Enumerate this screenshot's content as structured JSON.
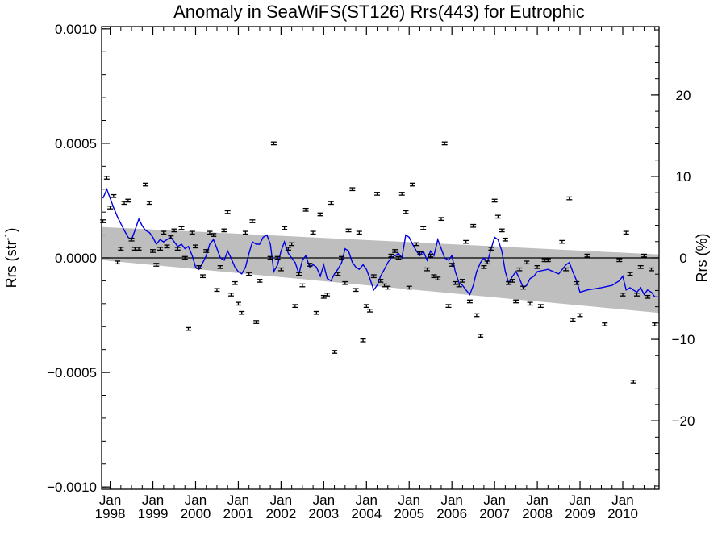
{
  "chart_data": {
    "type": "scatter",
    "title": "Anomaly in SeaWiFS(ST126) Rrs(443) for Eutrophic",
    "ylabel_left_main": "Rrs (str",
    "ylabel_left_sup": "-1",
    "ylabel_left_close": ")",
    "ylabel_right": "Rrs (%)",
    "xlim": [
      1997.8,
      2010.85
    ],
    "ylim_left": [
      -0.00101,
      0.00101
    ],
    "ylim_right": [
      -28.4,
      28.4
    ],
    "x_tick_month": "Jan",
    "x_ticks": [
      {
        "value": 1998,
        "label": "1998"
      },
      {
        "value": 1999,
        "label": "1999"
      },
      {
        "value": 2000,
        "label": "2000"
      },
      {
        "value": 2001,
        "label": "2001"
      },
      {
        "value": 2002,
        "label": "2002"
      },
      {
        "value": 2003,
        "label": "2003"
      },
      {
        "value": 2004,
        "label": "2004"
      },
      {
        "value": 2005,
        "label": "2005"
      },
      {
        "value": 2006,
        "label": "2006"
      },
      {
        "value": 2007,
        "label": "2007"
      },
      {
        "value": 2008,
        "label": "2008"
      },
      {
        "value": 2009,
        "label": "2009"
      },
      {
        "value": 2010,
        "label": "2010"
      }
    ],
    "y_ticks_left": [
      {
        "value": 0.001,
        "label": "0.0010"
      },
      {
        "value": 0.0005,
        "label": "0.0005"
      },
      {
        "value": 0.0,
        "label": "0.0000"
      },
      {
        "value": -0.0005,
        "label": "−0.0005"
      },
      {
        "value": -0.001,
        "label": "−0.0010"
      }
    ],
    "y_ticks_right": [
      {
        "value": 20,
        "label": "20"
      },
      {
        "value": 10,
        "label": "10"
      },
      {
        "value": 0,
        "label": "0"
      },
      {
        "value": -10,
        "label": "−10"
      },
      {
        "value": -20,
        "label": "−20"
      }
    ],
    "trend_band": {
      "x": [
        1997.8,
        2010.85
      ],
      "upper": [
        0.000135,
        1.5e-05
      ],
      "lower": [
        -1e-05,
        -0.00024
      ]
    },
    "colors": {
      "smooth_line": "#0000e6",
      "band": "#bebebe",
      "points": "#000000"
    },
    "error_half_width": 6e-06,
    "points": [
      {
        "x": 1997.83,
        "y": 0.00016
      },
      {
        "x": 1997.92,
        "y": 0.00035
      },
      {
        "x": 1998.0,
        "y": 0.00022
      },
      {
        "x": 1998.08,
        "y": 0.00027
      },
      {
        "x": 1998.17,
        "y": -2e-05
      },
      {
        "x": 1998.25,
        "y": 4e-05
      },
      {
        "x": 1998.33,
        "y": 0.00024
      },
      {
        "x": 1998.42,
        "y": 0.00025
      },
      {
        "x": 1998.5,
        "y": 8e-05
      },
      {
        "x": 1998.58,
        "y": 4e-05
      },
      {
        "x": 1998.67,
        "y": 4e-05
      },
      {
        "x": 1998.83,
        "y": 0.00032
      },
      {
        "x": 1998.92,
        "y": 0.00024
      },
      {
        "x": 1999.0,
        "y": 3e-05
      },
      {
        "x": 1999.08,
        "y": -3e-05
      },
      {
        "x": 1999.17,
        "y": 4e-05
      },
      {
        "x": 1999.25,
        "y": 0.00011
      },
      {
        "x": 1999.33,
        "y": 5e-05
      },
      {
        "x": 1999.42,
        "y": 9e-05
      },
      {
        "x": 1999.5,
        "y": 0.00012
      },
      {
        "x": 1999.58,
        "y": 4e-05
      },
      {
        "x": 1999.67,
        "y": 0.00013
      },
      {
        "x": 1999.75,
        "y": 0.0
      },
      {
        "x": 1999.83,
        "y": -0.00031
      },
      {
        "x": 1999.92,
        "y": 0.00011
      },
      {
        "x": 2000.0,
        "y": 5e-05
      },
      {
        "x": 2000.08,
        "y": -4e-05
      },
      {
        "x": 2000.17,
        "y": -8e-05
      },
      {
        "x": 2000.25,
        "y": 3e-05
      },
      {
        "x": 2000.33,
        "y": 0.00011
      },
      {
        "x": 2000.42,
        "y": 0.0001
      },
      {
        "x": 2000.5,
        "y": -0.00014
      },
      {
        "x": 2000.58,
        "y": -4e-05
      },
      {
        "x": 2000.67,
        "y": 0.00012
      },
      {
        "x": 2000.75,
        "y": 0.0002
      },
      {
        "x": 2000.83,
        "y": -0.00016
      },
      {
        "x": 2000.92,
        "y": -0.00011
      },
      {
        "x": 2001.0,
        "y": -0.0002
      },
      {
        "x": 2001.08,
        "y": -0.00024
      },
      {
        "x": 2001.17,
        "y": 0.00011
      },
      {
        "x": 2001.25,
        "y": -7e-05
      },
      {
        "x": 2001.33,
        "y": 0.00016
      },
      {
        "x": 2001.42,
        "y": -0.00028
      },
      {
        "x": 2001.5,
        "y": -0.0001
      },
      {
        "x": 2001.75,
        "y": 0.0
      },
      {
        "x": 2001.83,
        "y": 0.0005
      },
      {
        "x": 2001.92,
        "y": 0.0
      },
      {
        "x": 2002.0,
        "y": -5e-05
      },
      {
        "x": 2002.08,
        "y": 0.00013
      },
      {
        "x": 2002.17,
        "y": 4e-05
      },
      {
        "x": 2002.25,
        "y": 6e-05
      },
      {
        "x": 2002.33,
        "y": -0.00021
      },
      {
        "x": 2002.42,
        "y": -7e-05
      },
      {
        "x": 2002.5,
        "y": -0.00012
      },
      {
        "x": 2002.58,
        "y": 0.00021
      },
      {
        "x": 2002.67,
        "y": -3e-05
      },
      {
        "x": 2002.75,
        "y": 0.00011
      },
      {
        "x": 2002.83,
        "y": -0.00024
      },
      {
        "x": 2002.92,
        "y": 0.00019
      },
      {
        "x": 2003.0,
        "y": -0.00017
      },
      {
        "x": 2003.08,
        "y": -0.00016
      },
      {
        "x": 2003.17,
        "y": 0.00024
      },
      {
        "x": 2003.25,
        "y": -0.00041
      },
      {
        "x": 2003.33,
        "y": -7e-05
      },
      {
        "x": 2003.42,
        "y": 0.0
      },
      {
        "x": 2003.5,
        "y": -0.00011
      },
      {
        "x": 2003.58,
        "y": 0.00012
      },
      {
        "x": 2003.67,
        "y": 0.0003
      },
      {
        "x": 2003.75,
        "y": -0.00014
      },
      {
        "x": 2003.83,
        "y": 0.00011
      },
      {
        "x": 2003.92,
        "y": -0.00036
      },
      {
        "x": 2004.0,
        "y": -0.00021
      },
      {
        "x": 2004.08,
        "y": -0.00023
      },
      {
        "x": 2004.17,
        "y": -8e-05
      },
      {
        "x": 2004.25,
        "y": 0.00028
      },
      {
        "x": 2004.33,
        "y": -0.0001
      },
      {
        "x": 2004.42,
        "y": -0.00012
      },
      {
        "x": 2004.5,
        "y": -0.00013
      },
      {
        "x": 2004.58,
        "y": 1e-05
      },
      {
        "x": 2004.67,
        "y": 3e-05
      },
      {
        "x": 2004.75,
        "y": 0.0
      },
      {
        "x": 2004.83,
        "y": 0.00028
      },
      {
        "x": 2004.92,
        "y": 0.0002
      },
      {
        "x": 2005.0,
        "y": -0.00013
      },
      {
        "x": 2005.08,
        "y": 0.00032
      },
      {
        "x": 2005.17,
        "y": 6e-05
      },
      {
        "x": 2005.25,
        "y": 2e-05
      },
      {
        "x": 2005.33,
        "y": 0.00013
      },
      {
        "x": 2005.42,
        "y": -5e-05
      },
      {
        "x": 2005.5,
        "y": 1e-05
      },
      {
        "x": 2005.58,
        "y": -8e-05
      },
      {
        "x": 2005.67,
        "y": -9e-05
      },
      {
        "x": 2005.75,
        "y": 0.00017
      },
      {
        "x": 2005.83,
        "y": 0.0005
      },
      {
        "x": 2005.92,
        "y": -0.00021
      },
      {
        "x": 2006.0,
        "y": -3e-05
      },
      {
        "x": 2006.08,
        "y": -0.00011
      },
      {
        "x": 2006.17,
        "y": -0.00012
      },
      {
        "x": 2006.25,
        "y": -0.0001
      },
      {
        "x": 2006.33,
        "y": 7e-05
      },
      {
        "x": 2006.42,
        "y": -0.00019
      },
      {
        "x": 2006.5,
        "y": 0.00014
      },
      {
        "x": 2006.58,
        "y": -0.00025
      },
      {
        "x": 2006.67,
        "y": -0.00034
      },
      {
        "x": 2006.75,
        "y": -4e-05
      },
      {
        "x": 2006.83,
        "y": -2e-05
      },
      {
        "x": 2006.92,
        "y": 4e-05
      },
      {
        "x": 2007.0,
        "y": 0.00025
      },
      {
        "x": 2007.08,
        "y": 0.00018
      },
      {
        "x": 2007.17,
        "y": 0.00012
      },
      {
        "x": 2007.25,
        "y": 8e-05
      },
      {
        "x": 2007.33,
        "y": -0.00011
      },
      {
        "x": 2007.42,
        "y": -0.0001
      },
      {
        "x": 2007.5,
        "y": -0.00019
      },
      {
        "x": 2007.58,
        "y": -5e-05
      },
      {
        "x": 2007.67,
        "y": -0.00013
      },
      {
        "x": 2007.75,
        "y": -2e-05
      },
      {
        "x": 2007.83,
        "y": -0.0002
      },
      {
        "x": 2008.0,
        "y": -4e-05
      },
      {
        "x": 2008.08,
        "y": -0.00021
      },
      {
        "x": 2008.17,
        "y": -1e-05
      },
      {
        "x": 2008.25,
        "y": -1e-05
      },
      {
        "x": 2008.58,
        "y": 7e-05
      },
      {
        "x": 2008.67,
        "y": -5e-05
      },
      {
        "x": 2008.75,
        "y": 0.00026
      },
      {
        "x": 2008.83,
        "y": -0.00027
      },
      {
        "x": 2008.92,
        "y": -0.00011
      },
      {
        "x": 2009.0,
        "y": -0.00025
      },
      {
        "x": 2009.17,
        "y": 1e-05
      },
      {
        "x": 2009.58,
        "y": -0.00029
      },
      {
        "x": 2009.92,
        "y": -1e-05
      },
      {
        "x": 2010.0,
        "y": -0.00016
      },
      {
        "x": 2010.08,
        "y": 0.00011
      },
      {
        "x": 2010.17,
        "y": -7e-05
      },
      {
        "x": 2010.25,
        "y": -0.00054
      },
      {
        "x": 2010.33,
        "y": -0.00016
      },
      {
        "x": 2010.42,
        "y": -4e-05
      },
      {
        "x": 2010.5,
        "y": 1e-05
      },
      {
        "x": 2010.58,
        "y": -0.00017
      },
      {
        "x": 2010.67,
        "y": -5e-05
      },
      {
        "x": 2010.75,
        "y": -0.00029
      }
    ],
    "smooth_line": {
      "x": [
        1997.83,
        1997.92,
        1998.0,
        1998.08,
        1998.17,
        1998.25,
        1998.33,
        1998.42,
        1998.5,
        1998.58,
        1998.67,
        1998.75,
        1998.83,
        1998.92,
        1999.0,
        1999.08,
        1999.17,
        1999.25,
        1999.33,
        1999.42,
        1999.5,
        1999.58,
        1999.67,
        1999.75,
        1999.83,
        1999.92,
        2000.0,
        2000.08,
        2000.17,
        2000.25,
        2000.33,
        2000.42,
        2000.5,
        2000.58,
        2000.67,
        2000.75,
        2000.83,
        2000.92,
        2001.0,
        2001.08,
        2001.17,
        2001.25,
        2001.33,
        2001.42,
        2001.5,
        2001.58,
        2001.67,
        2001.75,
        2001.83,
        2001.92,
        2002.0,
        2002.08,
        2002.17,
        2002.25,
        2002.33,
        2002.42,
        2002.5,
        2002.58,
        2002.67,
        2002.75,
        2002.83,
        2002.92,
        2003.0,
        2003.08,
        2003.17,
        2003.25,
        2003.33,
        2003.42,
        2003.5,
        2003.58,
        2003.67,
        2003.75,
        2003.83,
        2003.92,
        2004.0,
        2004.08,
        2004.17,
        2004.25,
        2004.33,
        2004.42,
        2004.5,
        2004.58,
        2004.67,
        2004.75,
        2004.83,
        2004.92,
        2005.0,
        2005.08,
        2005.17,
        2005.25,
        2005.33,
        2005.42,
        2005.5,
        2005.58,
        2005.67,
        2005.75,
        2005.83,
        2005.92,
        2006.0,
        2006.08,
        2006.17,
        2006.25,
        2006.33,
        2006.42,
        2006.5,
        2006.58,
        2006.67,
        2006.75,
        2006.83,
        2006.92,
        2007.0,
        2007.08,
        2007.17,
        2007.25,
        2007.33,
        2007.42,
        2007.5,
        2007.58,
        2007.67,
        2007.75,
        2007.83,
        2007.92,
        2008.0,
        2008.25,
        2008.5,
        2008.67,
        2008.75,
        2008.83,
        2008.92,
        2009.0,
        2009.17,
        2009.5,
        2009.75,
        2009.92,
        2010.0,
        2010.08,
        2010.17,
        2010.25,
        2010.33,
        2010.42,
        2010.5,
        2010.58,
        2010.67,
        2010.75,
        2010.83
      ],
      "y": [
        0.00026,
        0.0003,
        0.00026,
        0.00022,
        0.00018,
        0.00015,
        0.00012,
        9e-05,
        8e-05,
        0.00012,
        0.00017,
        0.00014,
        0.00012,
        0.00011,
        9e-05,
        6e-05,
        8e-05,
        7e-05,
        8e-05,
        9e-05,
        7e-05,
        5e-05,
        6e-05,
        4e-05,
        5e-05,
        1e-05,
        -4e-05,
        -5e-05,
        -2e-05,
        1e-05,
        6e-05,
        8e-05,
        4e-05,
        0.0,
        -1e-05,
        3e-05,
        0.0,
        -4e-05,
        -6e-05,
        -7e-05,
        -4e-05,
        2e-05,
        7e-05,
        6e-05,
        6e-05,
        9e-05,
        0.0001,
        6e-05,
        -6e-05,
        -3e-05,
        3e-05,
        7e-05,
        2e-05,
        0.0,
        -2e-05,
        -7e-05,
        -1e-05,
        1e-05,
        -4e-05,
        -3e-05,
        -4e-05,
        -8e-05,
        -3e-05,
        -9e-05,
        -0.0001,
        -7e-05,
        -5e-05,
        -2e-05,
        4e-05,
        3e-05,
        -2e-05,
        -4e-05,
        -5e-05,
        -3e-05,
        -5e-05,
        -9e-05,
        -0.00014,
        -0.00012,
        -8e-05,
        -5e-05,
        -2e-05,
        0.0,
        1e-05,
        2e-05,
        0.0,
        0.0001,
        9e-05,
        6e-05,
        3e-05,
        1e-05,
        3e-05,
        -1e-05,
        3e-05,
        1e-05,
        8e-05,
        4e-05,
        0.0,
        -1e-05,
        1e-05,
        -6e-05,
        -0.00011,
        -0.00012,
        -0.00014,
        -0.00016,
        -0.00012,
        -6e-05,
        -2e-05,
        0.0,
        -2e-05,
        4e-05,
        9e-05,
        8e-05,
        3e-05,
        -6e-05,
        -0.00011,
        -8e-05,
        -6e-05,
        -9e-05,
        -0.00013,
        -0.00012,
        -9e-05,
        -8e-05,
        -6e-05,
        -5e-05,
        -7e-05,
        -3e-05,
        -2e-05,
        -6e-05,
        -0.0001,
        -0.00015,
        -0.00014,
        -0.00013,
        -0.00012,
        -0.0001,
        -8e-05,
        -0.00014,
        -0.00013,
        -0.00014,
        -0.00015,
        -0.00013,
        -0.00016,
        -0.00014,
        -0.00015,
        -0.00017,
        -0.00017
      ]
    }
  }
}
